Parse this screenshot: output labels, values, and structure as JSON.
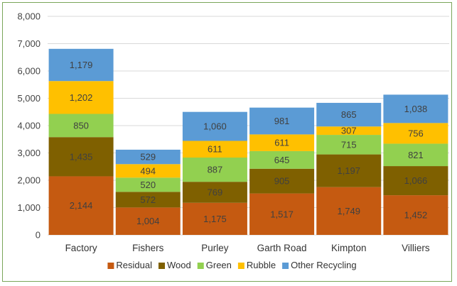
{
  "chart_data": {
    "type": "bar",
    "stacked": true,
    "title": "",
    "xlabel": "",
    "ylabel": "",
    "ylim": [
      0,
      8000
    ],
    "yticks": [
      0,
      1000,
      2000,
      3000,
      4000,
      5000,
      6000,
      7000,
      8000
    ],
    "ytick_labels": [
      "0",
      "1,000",
      "2,000",
      "3,000",
      "4,000",
      "5,000",
      "6,000",
      "7,000",
      "8,000"
    ],
    "grid": true,
    "legend_position": "bottom",
    "categories": [
      "Factory",
      "Fishers",
      "Purley",
      "Garth Road",
      "Kimpton",
      "Villiers"
    ],
    "series": [
      {
        "name": "Residual",
        "color": "#c55a11",
        "values": [
          2144,
          1004,
          1175,
          1517,
          1749,
          1452
        ],
        "labels": [
          "2,144",
          "1,004",
          "1,175",
          "1,517",
          "1,749",
          "1,452"
        ]
      },
      {
        "name": "Wood",
        "color": "#7f6000",
        "values": [
          1435,
          572,
          769,
          905,
          1197,
          1066
        ],
        "labels": [
          "1,435",
          "572",
          "769",
          "905",
          "1,197",
          "1,066"
        ]
      },
      {
        "name": "Green",
        "color": "#92d050",
        "values": [
          850,
          520,
          887,
          645,
          715,
          821
        ],
        "labels": [
          "850",
          "520",
          "887",
          "645",
          "715",
          "821"
        ]
      },
      {
        "name": "Rubble",
        "color": "#ffc000",
        "values": [
          1202,
          494,
          611,
          611,
          307,
          756
        ],
        "labels": [
          "1,202",
          "494",
          "611",
          "611",
          "307",
          "756"
        ]
      },
      {
        "name": "Other Recycling",
        "color": "#5b9bd5",
        "values": [
          1179,
          529,
          1060,
          981,
          865,
          1038
        ],
        "labels": [
          "1,179",
          "529",
          "1,060",
          "981",
          "865",
          "1,038"
        ]
      }
    ]
  }
}
